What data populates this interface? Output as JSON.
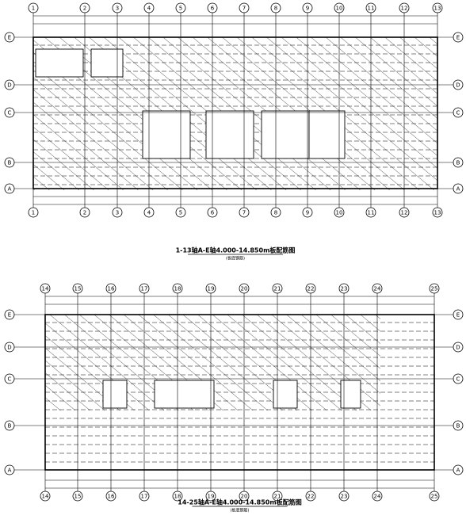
{
  "plans": [
    {
      "columns": [
        "1",
        "2",
        "3",
        "4",
        "5",
        "6",
        "7",
        "8",
        "9",
        "10",
        "11",
        "12",
        "13"
      ],
      "rows": [
        "E",
        "D",
        "C",
        "B",
        "A"
      ],
      "title": "1-13轴A-E轴4.000-14.850m板配筋图",
      "subtitle": "(板底钢筋)"
    },
    {
      "columns": [
        "14",
        "15",
        "16",
        "17",
        "18",
        "19",
        "20",
        "21",
        "22",
        "23",
        "24",
        "25"
      ],
      "rows": [
        "E",
        "D",
        "C",
        "B",
        "A"
      ],
      "title": "14-25轴A-E轴4.000-14.850m板配筋图",
      "subtitle": "(板底钢筋)"
    }
  ]
}
